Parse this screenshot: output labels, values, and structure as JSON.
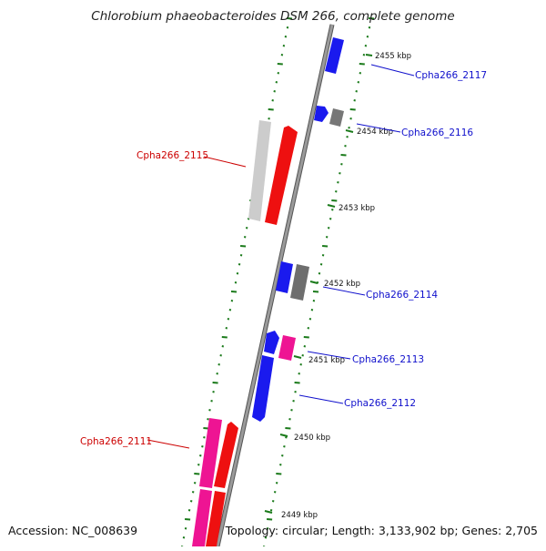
{
  "title": "Chlorobium phaeobacteroides DSM 266, complete genome",
  "footer": {
    "accession": "Accession: NC_008639",
    "summary": "Topology: circular; Length: 3,133,902 bp; Genes: 2,705"
  },
  "colors": {
    "backbone": "#8a8a8a",
    "tick_marks": "#1a7a1a",
    "forward_label": "#1010cc",
    "reverse_label": "#cc0000",
    "blue_feature": "#1010ee",
    "red_feature": "#ee1010",
    "pink_feature": "#ee1493",
    "gray_feature": "#777777",
    "lightgray_feature": "#cccccc"
  },
  "kbp_labels": [
    "2455 kbp",
    "2454 kbp",
    "2453 kbp",
    "2452 kbp",
    "2451 kbp",
    "2450 kbp",
    "2449 kbp"
  ],
  "gene_labels": [
    {
      "text": "Cpha266_2117",
      "strand": "forward"
    },
    {
      "text": "Cpha266_2116",
      "strand": "forward"
    },
    {
      "text": "Cpha266_2115",
      "strand": "reverse"
    },
    {
      "text": "Cpha266_2114",
      "strand": "forward"
    },
    {
      "text": "Cpha266_2113",
      "strand": "forward"
    },
    {
      "text": "Cpha266_2112",
      "strand": "forward"
    },
    {
      "text": "Cpha266_2111",
      "strand": "reverse"
    }
  ]
}
